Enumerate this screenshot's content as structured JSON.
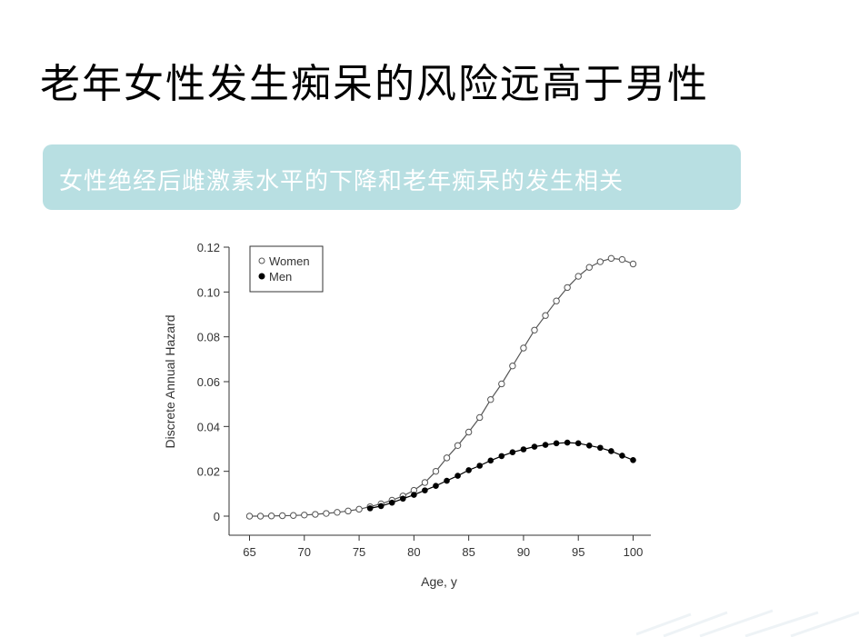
{
  "slide": {
    "title": "老年女性发生痴呆的风险远高于男性",
    "subtitle": "女性绝经后雌激素水平的下降和老年痴呆的发生相关",
    "banner_color": "#b8dfe2"
  },
  "chart_data": {
    "type": "line",
    "xlabel": "Age, y",
    "ylabel": "Discrete Annual Hazard",
    "xlim": [
      65,
      100
    ],
    "ylim": [
      0,
      0.12
    ],
    "x_ticks": [
      65,
      70,
      75,
      80,
      85,
      90,
      95,
      100
    ],
    "x_tick_labels": [
      "65",
      "70",
      "75",
      "80",
      "85",
      "90",
      "95",
      "100"
    ],
    "y_ticks": [
      0,
      0.02,
      0.04,
      0.06,
      0.08,
      0.1,
      0.12
    ],
    "y_tick_labels": [
      "0",
      "0.02",
      "0.04",
      "0.06",
      "0.08",
      "0.10",
      "0.12"
    ],
    "legend_position": "top-left",
    "series": [
      {
        "name": "Women",
        "marker": "open-circle",
        "color": "#555555",
        "x": [
          65,
          66,
          67,
          68,
          69,
          70,
          71,
          72,
          73,
          74,
          75,
          76,
          77,
          78,
          79,
          80,
          81,
          82,
          83,
          84,
          85,
          86,
          87,
          88,
          89,
          90,
          91,
          92,
          93,
          94,
          95,
          96,
          97,
          98,
          99,
          100
        ],
        "y": [
          0.0,
          0.0,
          0.0001,
          0.0002,
          0.0003,
          0.0005,
          0.0008,
          0.0012,
          0.0017,
          0.0023,
          0.0031,
          0.0042,
          0.0055,
          0.0071,
          0.009,
          0.0115,
          0.015,
          0.02,
          0.026,
          0.0315,
          0.0375,
          0.044,
          0.052,
          0.059,
          0.067,
          0.075,
          0.083,
          0.0895,
          0.096,
          0.102,
          0.107,
          0.111,
          0.1135,
          0.115,
          0.1145,
          0.1125
        ]
      },
      {
        "name": "Men",
        "marker": "filled-circle",
        "color": "#000000",
        "x": [
          76,
          77,
          78,
          79,
          80,
          81,
          82,
          83,
          84,
          85,
          86,
          87,
          88,
          89,
          90,
          91,
          92,
          93,
          94,
          95,
          96,
          97,
          98,
          99,
          100
        ],
        "y": [
          0.0035,
          0.0045,
          0.006,
          0.0078,
          0.0095,
          0.0115,
          0.0135,
          0.0158,
          0.018,
          0.0205,
          0.0225,
          0.0248,
          0.0268,
          0.0285,
          0.0298,
          0.031,
          0.0318,
          0.0325,
          0.0328,
          0.0325,
          0.0315,
          0.0305,
          0.029,
          0.027,
          0.025
        ]
      }
    ]
  }
}
